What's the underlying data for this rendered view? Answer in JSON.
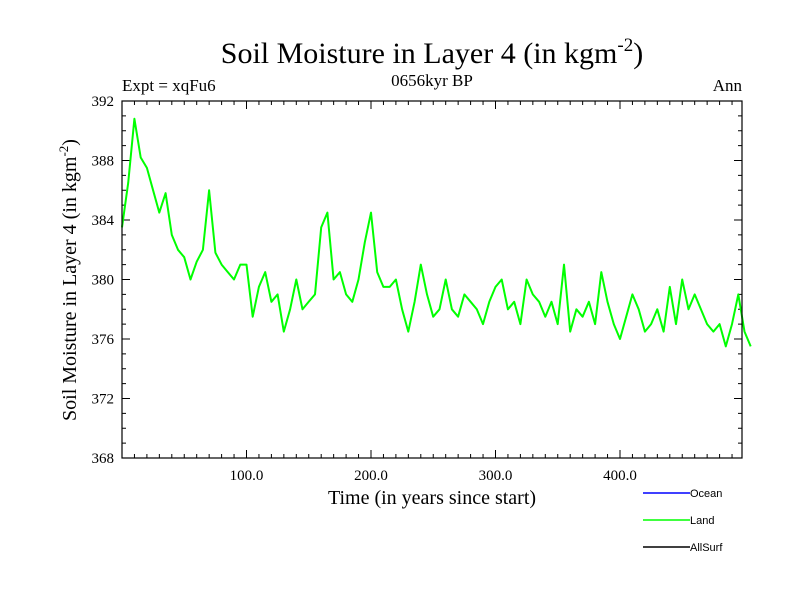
{
  "chart_data": {
    "type": "line",
    "title": "Soil Moisture in Layer 4 (in kgm",
    "title_sup": "-2",
    "title_end": ")",
    "subtitle_left": "Expt = xqFu6",
    "subtitle_center": "0656kyr BP",
    "subtitle_right": "Ann",
    "xlabel": "Time (in years since start)",
    "ylabel": "Soil Moisture in Layer 4 (in kgm",
    "ylabel_sup": "-2",
    "ylabel_end": ")",
    "xlim": [
      0,
      498
    ],
    "ylim": [
      368,
      392
    ],
    "x_ticks": [
      100,
      200,
      300,
      400
    ],
    "x_tick_labels": [
      "100.0",
      "200.0",
      "300.0",
      "400.0"
    ],
    "y_ticks": [
      368,
      372,
      376,
      380,
      384,
      388,
      392
    ],
    "y_tick_labels": [
      "368",
      "372",
      "376",
      "380",
      "384",
      "388",
      "392"
    ],
    "legend": [
      {
        "name": "Ocean",
        "color": "#0000ff"
      },
      {
        "name": "Land",
        "color": "#00ff00"
      },
      {
        "name": "AllSurf",
        "color": "#000000"
      }
    ],
    "series": [
      {
        "name": "Land",
        "color": "#00ff00",
        "x_start": 0,
        "x_step": 5,
        "values": [
          383.5,
          386.5,
          390.8,
          388.2,
          387.5,
          386.0,
          384.5,
          385.8,
          383.0,
          382.0,
          381.5,
          380.0,
          381.2,
          382.0,
          386.0,
          381.8,
          381.0,
          380.5,
          380.0,
          381.0,
          381.0,
          377.5,
          379.5,
          380.5,
          378.5,
          379.0,
          376.5,
          378.0,
          380.0,
          378.0,
          378.5,
          379.0,
          383.5,
          384.5,
          380.0,
          380.5,
          379.0,
          378.5,
          380.0,
          382.5,
          384.5,
          380.5,
          379.5,
          379.5,
          380.0,
          378.0,
          376.5,
          378.5,
          381.0,
          379.0,
          377.5,
          378.0,
          380.0,
          378.0,
          377.5,
          379.0,
          378.5,
          378.0,
          377.0,
          378.5,
          379.5,
          380.0,
          378.0,
          378.5,
          377.0,
          380.0,
          379.0,
          378.5,
          377.5,
          378.5,
          377.0,
          381.0,
          376.5,
          378.0,
          377.5,
          378.5,
          377.0,
          380.5,
          378.5,
          377.0,
          376.0,
          377.5,
          379.0,
          378.0,
          376.5,
          377.0,
          378.0,
          376.5,
          379.5,
          377.0,
          380.0,
          378.0,
          379.0,
          378.0,
          377.0,
          376.5,
          377.0,
          375.5,
          377.0,
          379.0,
          376.5,
          375.5
        ]
      }
    ]
  }
}
